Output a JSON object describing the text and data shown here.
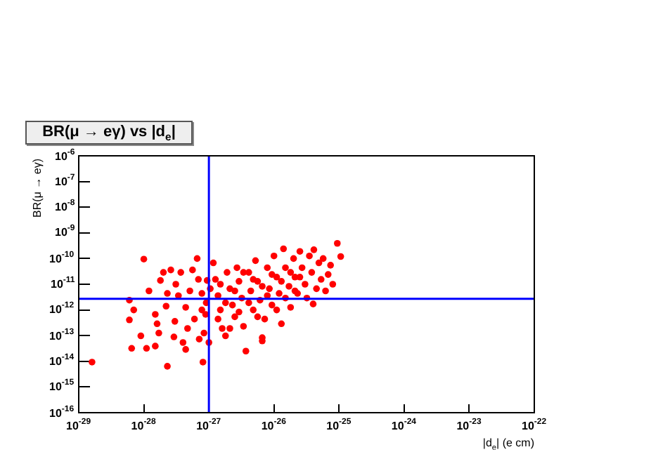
{
  "chart_data": {
    "type": "scatter",
    "title": "BR(μ → eγ) vs |d$_{e}$|",
    "xlabel": "|d$_{e}$|  (e cm)",
    "ylabel": "BR(μ → eγ)",
    "log": "xy",
    "grid": false,
    "legend": false,
    "marker": "circle",
    "xlim": [
      1e-29,
      1e-22
    ],
    "ylim": [
      1e-16,
      1e-06
    ],
    "xticks": [
      {
        "value": 1e-29,
        "label": "10$^{-29}$"
      },
      {
        "value": 1e-28,
        "label": "10$^{-28}$"
      },
      {
        "value": 1e-27,
        "label": "10$^{-27}$"
      },
      {
        "value": 1e-26,
        "label": "10$^{-26}$"
      },
      {
        "value": 1e-25,
        "label": "10$^{-25}$"
      },
      {
        "value": 1e-24,
        "label": "10$^{-24}$"
      },
      {
        "value": 1e-23,
        "label": "10$^{-23}$"
      },
      {
        "value": 1e-22,
        "label": "10$^{-22}$"
      }
    ],
    "yticks": [
      {
        "value": 1e-16,
        "label": "10$^{-16}$"
      },
      {
        "value": 1e-15,
        "label": "10$^{-15}$"
      },
      {
        "value": 1e-14,
        "label": "10$^{-14}$"
      },
      {
        "value": 1e-13,
        "label": "10$^{-13}$"
      },
      {
        "value": 1e-12,
        "label": "10$^{-12}$"
      },
      {
        "value": 1e-11,
        "label": "10$^{-11}$"
      },
      {
        "value": 1e-10,
        "label": "10$^{-10}$"
      },
      {
        "value": 1e-09,
        "label": "10$^{-9}$"
      },
      {
        "value": 1e-08,
        "label": "10$^{-8}$"
      },
      {
        "value": 1e-07,
        "label": "10$^{-7}$"
      },
      {
        "value": 1e-06,
        "label": "10$^{-6}$"
      }
    ],
    "ref_lines": [
      {
        "axis": "x",
        "value": 1e-27,
        "color": "#0000ff"
      },
      {
        "axis": "y",
        "value": 2.7e-12,
        "color": "#0000ff"
      }
    ],
    "series": [
      {
        "color": "#ff0000",
        "x": [
          1.6e-29,
          6e-29,
          6.5e-29,
          7e-29,
          6e-29,
          9e-29,
          1.1e-28,
          1e-28,
          1.2e-28,
          1.5e-28,
          1.5e-28,
          1.6e-28,
          1.7e-28,
          1.8e-28,
          2e-28,
          2.2e-28,
          2.3e-28,
          2.3e-28,
          2.6e-28,
          2.9e-28,
          3e-28,
          3.1e-28,
          3.4e-28,
          3.7e-28,
          4e-28,
          4.4e-28,
          4.4e-28,
          4.7e-28,
          5.1e-28,
          5.6e-28,
          6e-28,
          6.6e-28,
          6.9e-28,
          7.1e-28,
          7.8e-28,
          8.1e-28,
          8.4e-28,
          8.9e-28,
          9.1e-28,
          1e-27,
          9.4e-28,
          1.05e-27,
          1.17e-27,
          1.26e-27,
          1.38e-27,
          1.5e-27,
          1.6e-27,
          1.8e-27,
          1.9e-27,
          2.1e-27,
          2.3e-27,
          2.5e-27,
          2.7e-27,
          2.9e-27,
          3.2e-27,
          3.4e-27,
          3.7e-27,
          4.1e-27,
          4.4e-27,
          4.8e-27,
          5.2e-27,
          5.6e-27,
          6.1e-27,
          6.6e-27,
          7.2e-27,
          7.9e-27,
          8.5e-27,
          9.3e-27,
          1e-26,
          1.1e-26,
          1.2e-26,
          1.3e-26,
          1.4e-26,
          1.5e-26,
          1.7e-26,
          1.8e-26,
          2e-26,
          2.1e-26,
          2.3e-26,
          2.5e-26,
          2.7e-26,
          3e-26,
          3.2e-26,
          3.5e-26,
          3.8e-26,
          4.1e-26,
          4.5e-26,
          4.9e-26,
          5.3e-26,
          5.7e-26,
          6.2e-26,
          6.8e-26,
          7.4e-26,
          8e-26,
          9.4e-26,
          1.06e-25,
          4e-26,
          7.8e-28,
          1.5e-27,
          2.5e-27,
          3.4e-27,
          4.8e-27,
          6.6e-27,
          9.3e-27,
          1.3e-26,
          1.8e-26,
          2.5e-26,
          1.8e-27,
          2.9e-27,
          4.1e-27,
          5.6e-27,
          7.9e-27,
          1.1e-26,
          1.5e-26,
          2.1e-26,
          1.38e-27,
          2.1e-27,
          6.6e-27
        ],
        "values": [
          9.3e-15,
          2.4e-12,
          3.2e-14,
          1e-12,
          4.1e-13,
          9.8e-14,
          3.2e-14,
          9.5e-11,
          5.5e-12,
          3.9e-14,
          6.7e-13,
          2.9e-13,
          1.26e-13,
          1.4e-11,
          2.9e-11,
          1.4e-12,
          6.4e-15,
          4.4e-12,
          3.6e-11,
          8.9e-14,
          3.6e-13,
          1e-11,
          3.6e-12,
          2.9e-11,
          5.4e-14,
          2.9e-14,
          1.26e-12,
          1.9e-13,
          5.5e-12,
          3.6e-11,
          4.4e-13,
          1e-10,
          1.55e-11,
          7.3e-14,
          4.4e-12,
          9.3e-15,
          1.26e-13,
          6.7e-13,
          1.9e-12,
          5.4e-14,
          1.4e-11,
          6.7e-12,
          6.8e-11,
          1.55e-11,
          3.6e-12,
          1e-12,
          1.9e-13,
          9.8e-14,
          2.9e-11,
          6.7e-12,
          1.55e-12,
          5.4e-13,
          4.4e-11,
          1.3e-11,
          2.9e-12,
          2.3e-13,
          2.5e-14,
          2.9e-11,
          5.5e-12,
          1e-12,
          8.3e-11,
          1.3e-11,
          2.4e-12,
          8.3e-14,
          4.4e-13,
          4.4e-11,
          6.7e-12,
          1.55e-12,
          1.26e-10,
          1.9e-11,
          4.4e-12,
          2.9e-13,
          2.4e-10,
          4.4e-11,
          8.3e-12,
          1.26e-12,
          1e-10,
          1.9e-11,
          4.4e-12,
          1.9e-10,
          4.4e-11,
          1e-11,
          2.9e-12,
          1.26e-10,
          2.9e-11,
          2.2e-10,
          6.7e-12,
          6.8e-11,
          1.55e-11,
          1e-10,
          5.5e-12,
          2.4e-11,
          5.5e-11,
          1e-11,
          3.9e-10,
          1.2e-10,
          1.7e-12,
          1e-12,
          1e-11,
          5.5e-12,
          2.9e-11,
          1.55e-11,
          8.3e-12,
          2.4e-11,
          1.3e-11,
          2.9e-11,
          1.9e-11,
          1.9e-12,
          8.3e-13,
          1.9e-12,
          5.4e-13,
          3.6e-12,
          1e-12,
          2.9e-12,
          5.5e-12,
          4.4e-13,
          1.9e-13,
          6.2e-14
        ]
      }
    ]
  }
}
